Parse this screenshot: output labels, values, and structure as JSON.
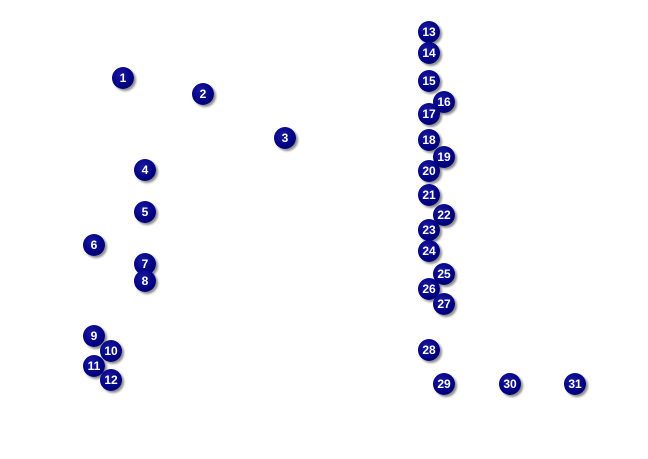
{
  "colors": {
    "marker_fill": "#000080",
    "marker_text": "#ffffff"
  },
  "markers": [
    "1",
    "2",
    "3",
    "4",
    "5",
    "6",
    "7",
    "8",
    "9",
    "10",
    "11",
    "12",
    "13",
    "14",
    "15",
    "16",
    "17",
    "18",
    "19",
    "20",
    "21",
    "22",
    "23",
    "24",
    "25",
    "26",
    "27",
    "28",
    "29",
    "30",
    "31"
  ]
}
